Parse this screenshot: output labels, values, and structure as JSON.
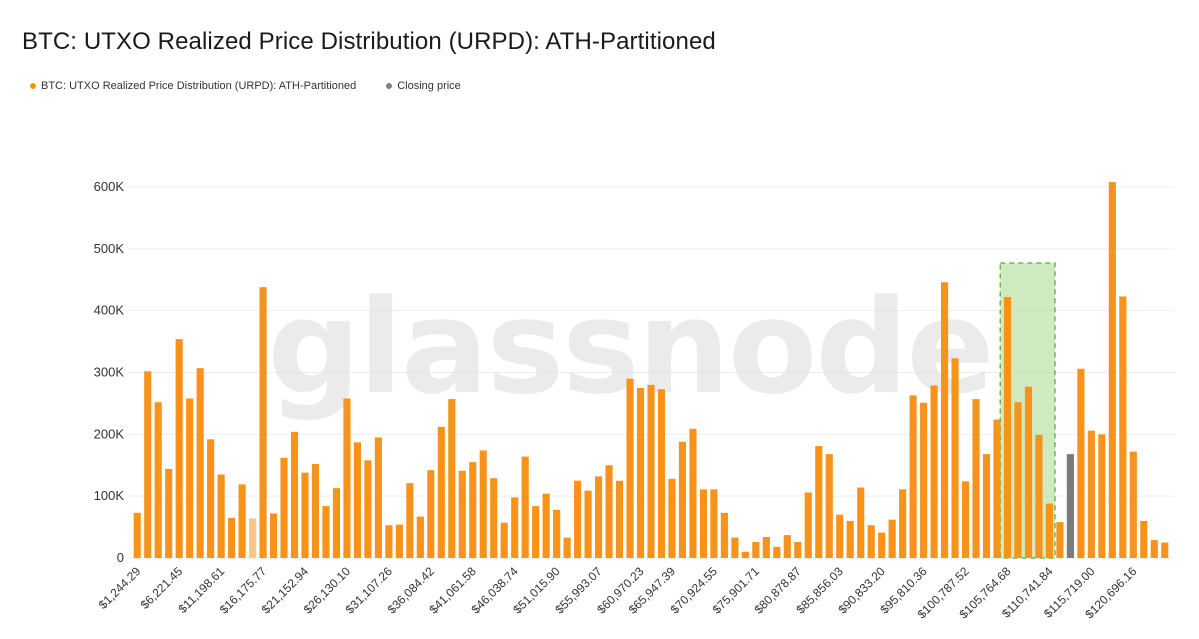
{
  "title": "BTC: UTXO Realized Price Distribution (URPD): ATH-Partitioned",
  "watermark": "glassnode",
  "legend": [
    {
      "label": "BTC: UTXO Realized Price Distribution (URPD): ATH-Partitioned",
      "color": "#f7931a"
    },
    {
      "label": "Closing price",
      "color": "#808080"
    }
  ],
  "colors": {
    "bar": "#f7931a",
    "bar_light": "#f9c58a",
    "closing": "#7a7a7a",
    "highlight_fill": "#a8d88a",
    "highlight_stroke": "#6cba4a",
    "grid": "#eeeeee"
  },
  "chart_data": {
    "type": "bar",
    "title": "BTC: UTXO Realized Price Distribution (URPD): ATH-Partitioned",
    "ylim": [
      0,
      620000
    ],
    "yticks": [
      0,
      100000,
      200000,
      300000,
      400000,
      500000,
      600000
    ],
    "ytick_labels": [
      "0",
      "100K",
      "200K",
      "300K",
      "400K",
      "500K",
      "600K"
    ],
    "xtick_labels": [
      "$1,244.29",
      "$6,221.45",
      "$11,198.61",
      "$16,175.77",
      "$21,152.94",
      "$26,130.10",
      "$31,107.26",
      "$36,084.42",
      "$41,061.58",
      "$46,038.74",
      "$51,015.90",
      "$55,993.07",
      "$60,970.23",
      "$65,947.39",
      "$70,924.55",
      "$75,901.71",
      "$80,878.87",
      "$85,856.03",
      "$90,833.20",
      "$95,810.36",
      "$100,787.52",
      "$105,764.68",
      "$110,741.84",
      "$115,719.00",
      "$120,696.16"
    ],
    "grid": true,
    "legend_position": "top-left",
    "values": [
      73000,
      302000,
      252000,
      144000,
      354000,
      258000,
      307000,
      192000,
      135000,
      65000,
      119000,
      64000,
      438000,
      72000,
      162000,
      204000,
      138000,
      152000,
      84000,
      113000,
      258000,
      187000,
      158000,
      195000,
      53000,
      54000,
      121000,
      67000,
      142000,
      212000,
      257000,
      141000,
      155000,
      174000,
      129000,
      57000,
      98000,
      164000,
      84000,
      104000,
      78000,
      33000,
      125000,
      109000,
      132000,
      150000,
      125000,
      290000,
      275000,
      280000,
      273000,
      128000,
      188000,
      209000,
      111000,
      111000,
      73000,
      33000,
      10000,
      26000,
      34000,
      18000,
      37000,
      26000,
      106000,
      181000,
      168000,
      70000,
      60000,
      114000,
      53000,
      41000,
      62000,
      111000,
      263000,
      251000,
      279000,
      446000,
      323000,
      124000,
      257000,
      168000,
      224000,
      422000,
      252000,
      277000,
      199000,
      88000,
      58000,
      168000,
      306000,
      206000,
      200000,
      608000,
      423000,
      172000,
      60000,
      29000,
      25000
    ],
    "light_bar_index": 11,
    "closing_price_index": 89,
    "highlight_range": [
      83,
      87
    ]
  }
}
